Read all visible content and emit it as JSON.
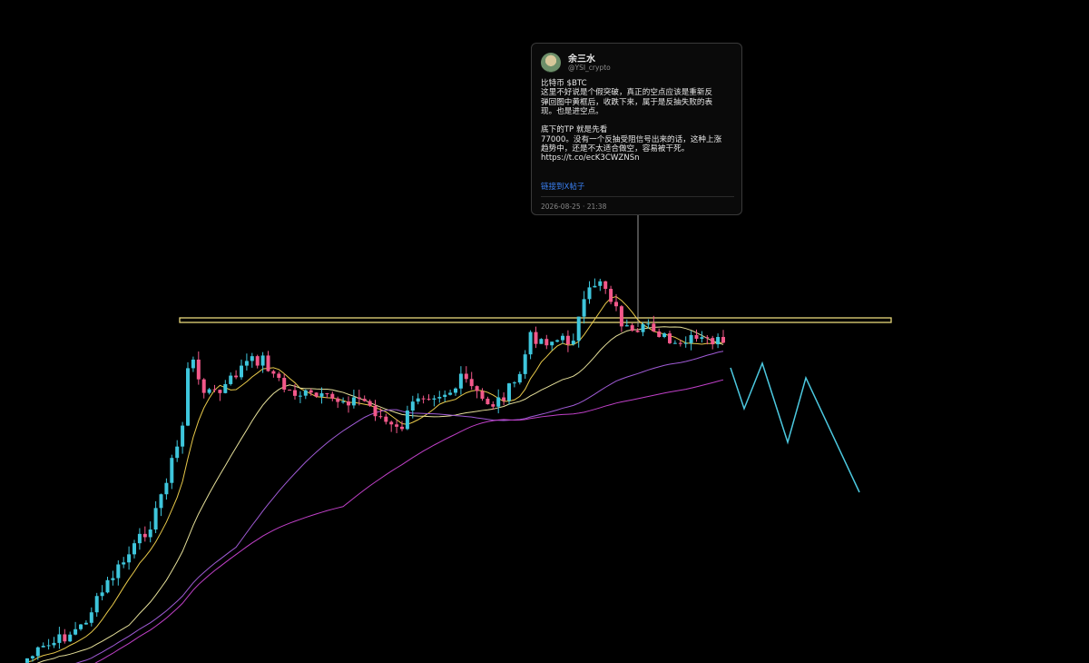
{
  "tweet": {
    "author": "余三水",
    "handle": "@YSI_crypto",
    "paragraphs": [
      [
        "比特币 $BTC",
        "这里不好说是个假突破，真正的空点应该是重新反",
        "弹回图中黄框后，收跌下来，属于是反抽失败的表",
        "现。也是进空点。"
      ],
      [
        "底下的TP 就是先看",
        "77000。没有一个反抽受阻信号出来的话，这种上涨",
        "趋势中，还是不太适合做空，容易被干死。",
        "https://t.co/ecK3CWZNSn"
      ]
    ],
    "link": "链接到X帖子",
    "timestamp": "2026-08-25 · 21:38"
  }
}
